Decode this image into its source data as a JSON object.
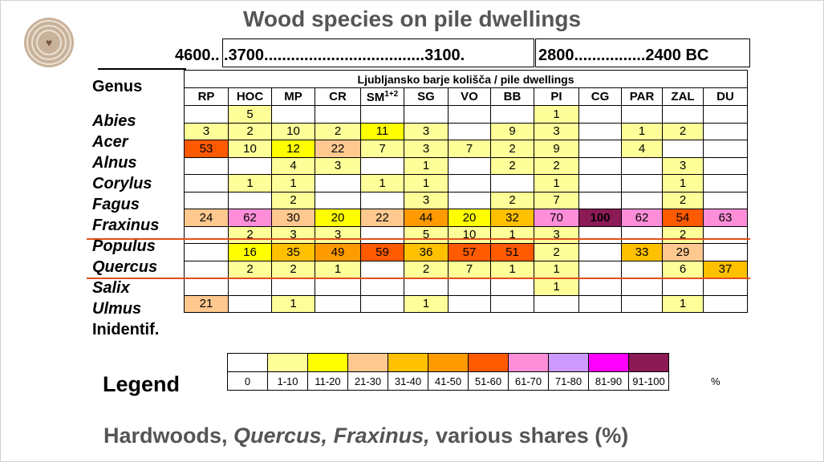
{
  "title": "Wood species on pile dwellings",
  "timeline": {
    "start": "4600..",
    "box1": ".3700....................................3100.",
    "between": ".",
    "box2": "2800................2400 BC"
  },
  "table": {
    "genus_header": "Genus",
    "group_header": "Ljubljansko barje kolišča / pile dwellings",
    "sites": [
      "RP",
      "HOC",
      "MP",
      "CR",
      "SM1+2",
      "SG",
      "VO",
      "BB",
      "PI",
      "CG",
      "PAR",
      "ZAL",
      "DU"
    ],
    "rows": [
      {
        "genus": "Abies",
        "italic": true,
        "values": [
          "",
          "5",
          "",
          "",
          "",
          "",
          "",
          "",
          "1",
          "",
          "",
          "",
          ""
        ]
      },
      {
        "genus": "Acer",
        "italic": true,
        "values": [
          "3",
          "2",
          "10",
          "2",
          "11",
          "3",
          "",
          "9",
          "3",
          "",
          "1",
          "2",
          ""
        ]
      },
      {
        "genus": "Alnus",
        "italic": true,
        "values": [
          "53",
          "10",
          "12",
          "22",
          "7",
          "3",
          "7",
          "2",
          "9",
          "",
          "4",
          "",
          ""
        ]
      },
      {
        "genus": "Corylus",
        "italic": true,
        "values": [
          "",
          "",
          "4",
          "3",
          "",
          "1",
          "",
          "2",
          "2",
          "",
          "",
          "3",
          ""
        ]
      },
      {
        "genus": "Fagus",
        "italic": true,
        "values": [
          "",
          "1",
          "1",
          "",
          "1",
          "1",
          "",
          "",
          "1",
          "",
          "",
          "1",
          ""
        ]
      },
      {
        "genus": "Fraxinus",
        "italic": true,
        "values": [
          "",
          "",
          "2",
          "",
          "",
          "3",
          "",
          "2",
          "7",
          "",
          "",
          "2",
          ""
        ]
      },
      {
        "genus": "Populus",
        "italic": true,
        "values": [
          "24",
          "62",
          "30",
          "20",
          "22",
          "44",
          "20",
          "32",
          "70",
          "100",
          "62",
          "54",
          "63"
        ]
      },
      {
        "genus": "Quercus",
        "italic": true,
        "values": [
          "",
          "2",
          "3",
          "3",
          "",
          "5",
          "10",
          "1",
          "3",
          "",
          "",
          "2",
          ""
        ]
      },
      {
        "genus": "Salix",
        "italic": true,
        "values": [
          "",
          "16",
          "35",
          "49",
          "59",
          "36",
          "57",
          "51",
          "2",
          "",
          "33",
          "29",
          ""
        ]
      },
      {
        "genus": "Ulmus",
        "italic": true,
        "values": [
          "",
          "2",
          "2",
          "1",
          "",
          "2",
          "7",
          "1",
          "1",
          "",
          "",
          "6",
          "37"
        ]
      },
      {
        "genus": "Inidentif.",
        "italic": false,
        "values": [
          "",
          "",
          "",
          "",
          "",
          "",
          "",
          "",
          "1",
          "",
          "",
          "",
          ""
        ]
      },
      {
        "genus": "",
        "italic": false,
        "values": [
          "21",
          "",
          "1",
          "",
          "",
          "1",
          "",
          "",
          "",
          "",
          "",
          "1",
          ""
        ]
      }
    ]
  },
  "legend": {
    "title": "Legend",
    "unit": "%",
    "bins": [
      {
        "label": "0",
        "color": "#ffffff"
      },
      {
        "label": "1-10",
        "color": "#ffff99"
      },
      {
        "label": "11-20",
        "color": "#ffff00"
      },
      {
        "label": "21-30",
        "color": "#ffc88f"
      },
      {
        "label": "31-40",
        "color": "#ffc000"
      },
      {
        "label": "41-50",
        "color": "#ff9a00"
      },
      {
        "label": "51-60",
        "color": "#ff5a00"
      },
      {
        "label": "61-70",
        "color": "#ff8ed8"
      },
      {
        "label": "71-80",
        "color": "#cc99ff"
      },
      {
        "label": "81-90",
        "color": "#ff00ff"
      },
      {
        "label": "91-100",
        "color": "#8b1a55"
      }
    ]
  },
  "caption": {
    "lead": "Hardwoods, ",
    "quercus": "Quercus, ",
    "fraxinus": "Fraxinus,",
    "tail": " various shares (%)"
  }
}
